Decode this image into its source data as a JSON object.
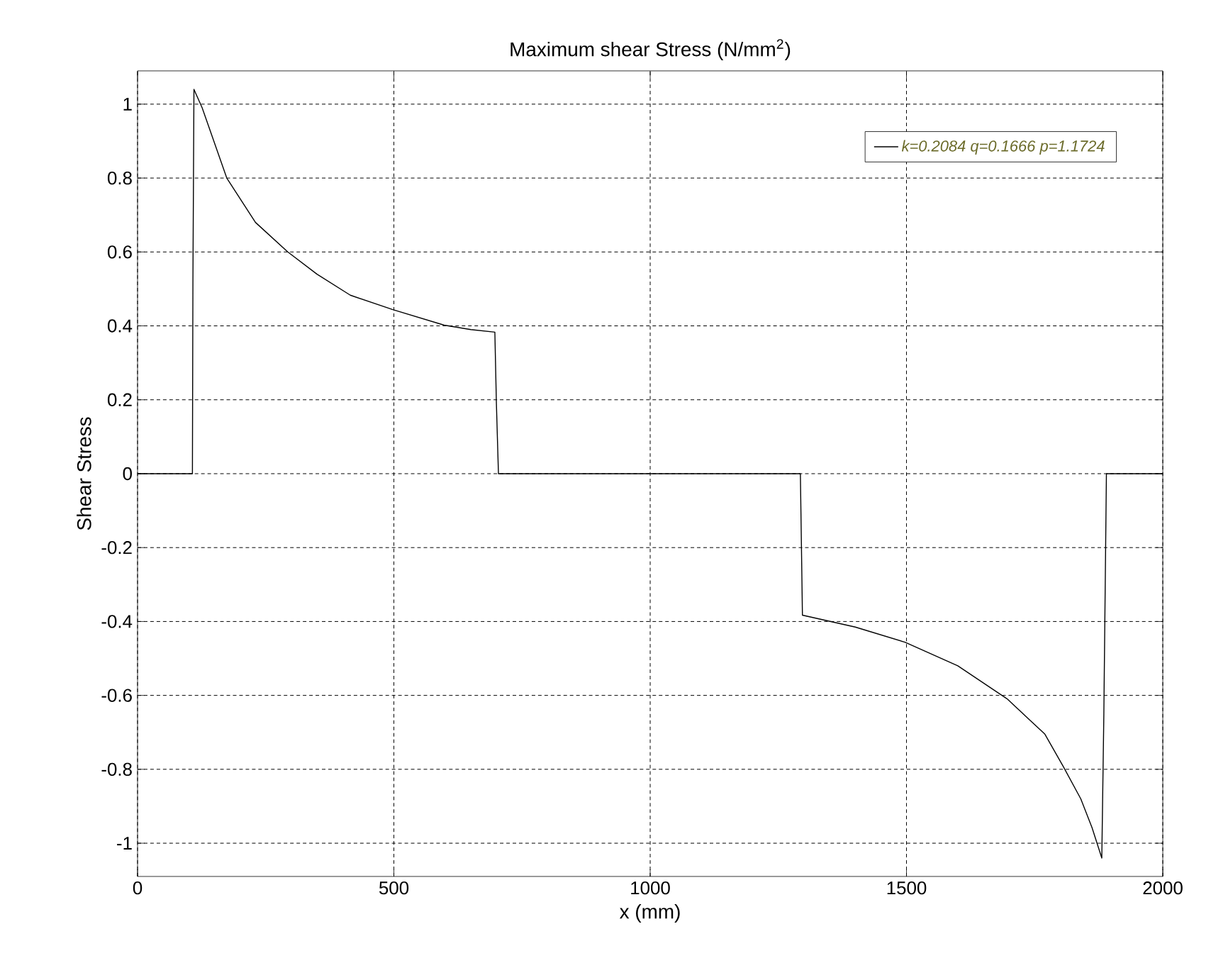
{
  "chart_data": {
    "type": "line",
    "title": "Maximum shear Stress (N/mm$^{2}$)",
    "xlabel": "x (mm)",
    "ylabel": "Shear Stress",
    "xlim": [
      0,
      2000
    ],
    "ylim": [
      -1.09,
      1.09
    ],
    "xticks": [
      0,
      500,
      1000,
      1500,
      2000
    ],
    "yticks": [
      -1,
      -0.8,
      -0.6,
      -0.4,
      -0.2,
      0,
      0.2,
      0.4,
      0.6,
      0.8,
      1
    ],
    "grid": true,
    "legend": "top right",
    "marker": "none",
    "line_style": "solid",
    "series": [
      {
        "name": "k=0.2084 q=0.1666 p=1.1724",
        "color": "#000000",
        "x": [
          0,
          107,
          108,
          110,
          126,
          174,
          230,
          293,
          350,
          415,
          498,
          598,
          650,
          697,
          700,
          704,
          1000,
          1293,
          1295,
          1297,
          1400,
          1497,
          1600,
          1696,
          1770,
          1806,
          1840,
          1862,
          1881,
          1885,
          1890,
          2000
        ],
        "values": [
          0,
          0,
          0.52,
          1.04,
          0.99,
          0.8,
          0.68,
          0.6,
          0.54,
          0.483,
          0.444,
          0.402,
          0.39,
          0.383,
          0.19,
          0,
          0,
          0,
          -0.19,
          -0.383,
          -0.415,
          -0.456,
          -0.52,
          -0.609,
          -0.705,
          -0.793,
          -0.88,
          -0.958,
          -1.04,
          -0.65,
          0,
          0
        ]
      }
    ]
  }
}
